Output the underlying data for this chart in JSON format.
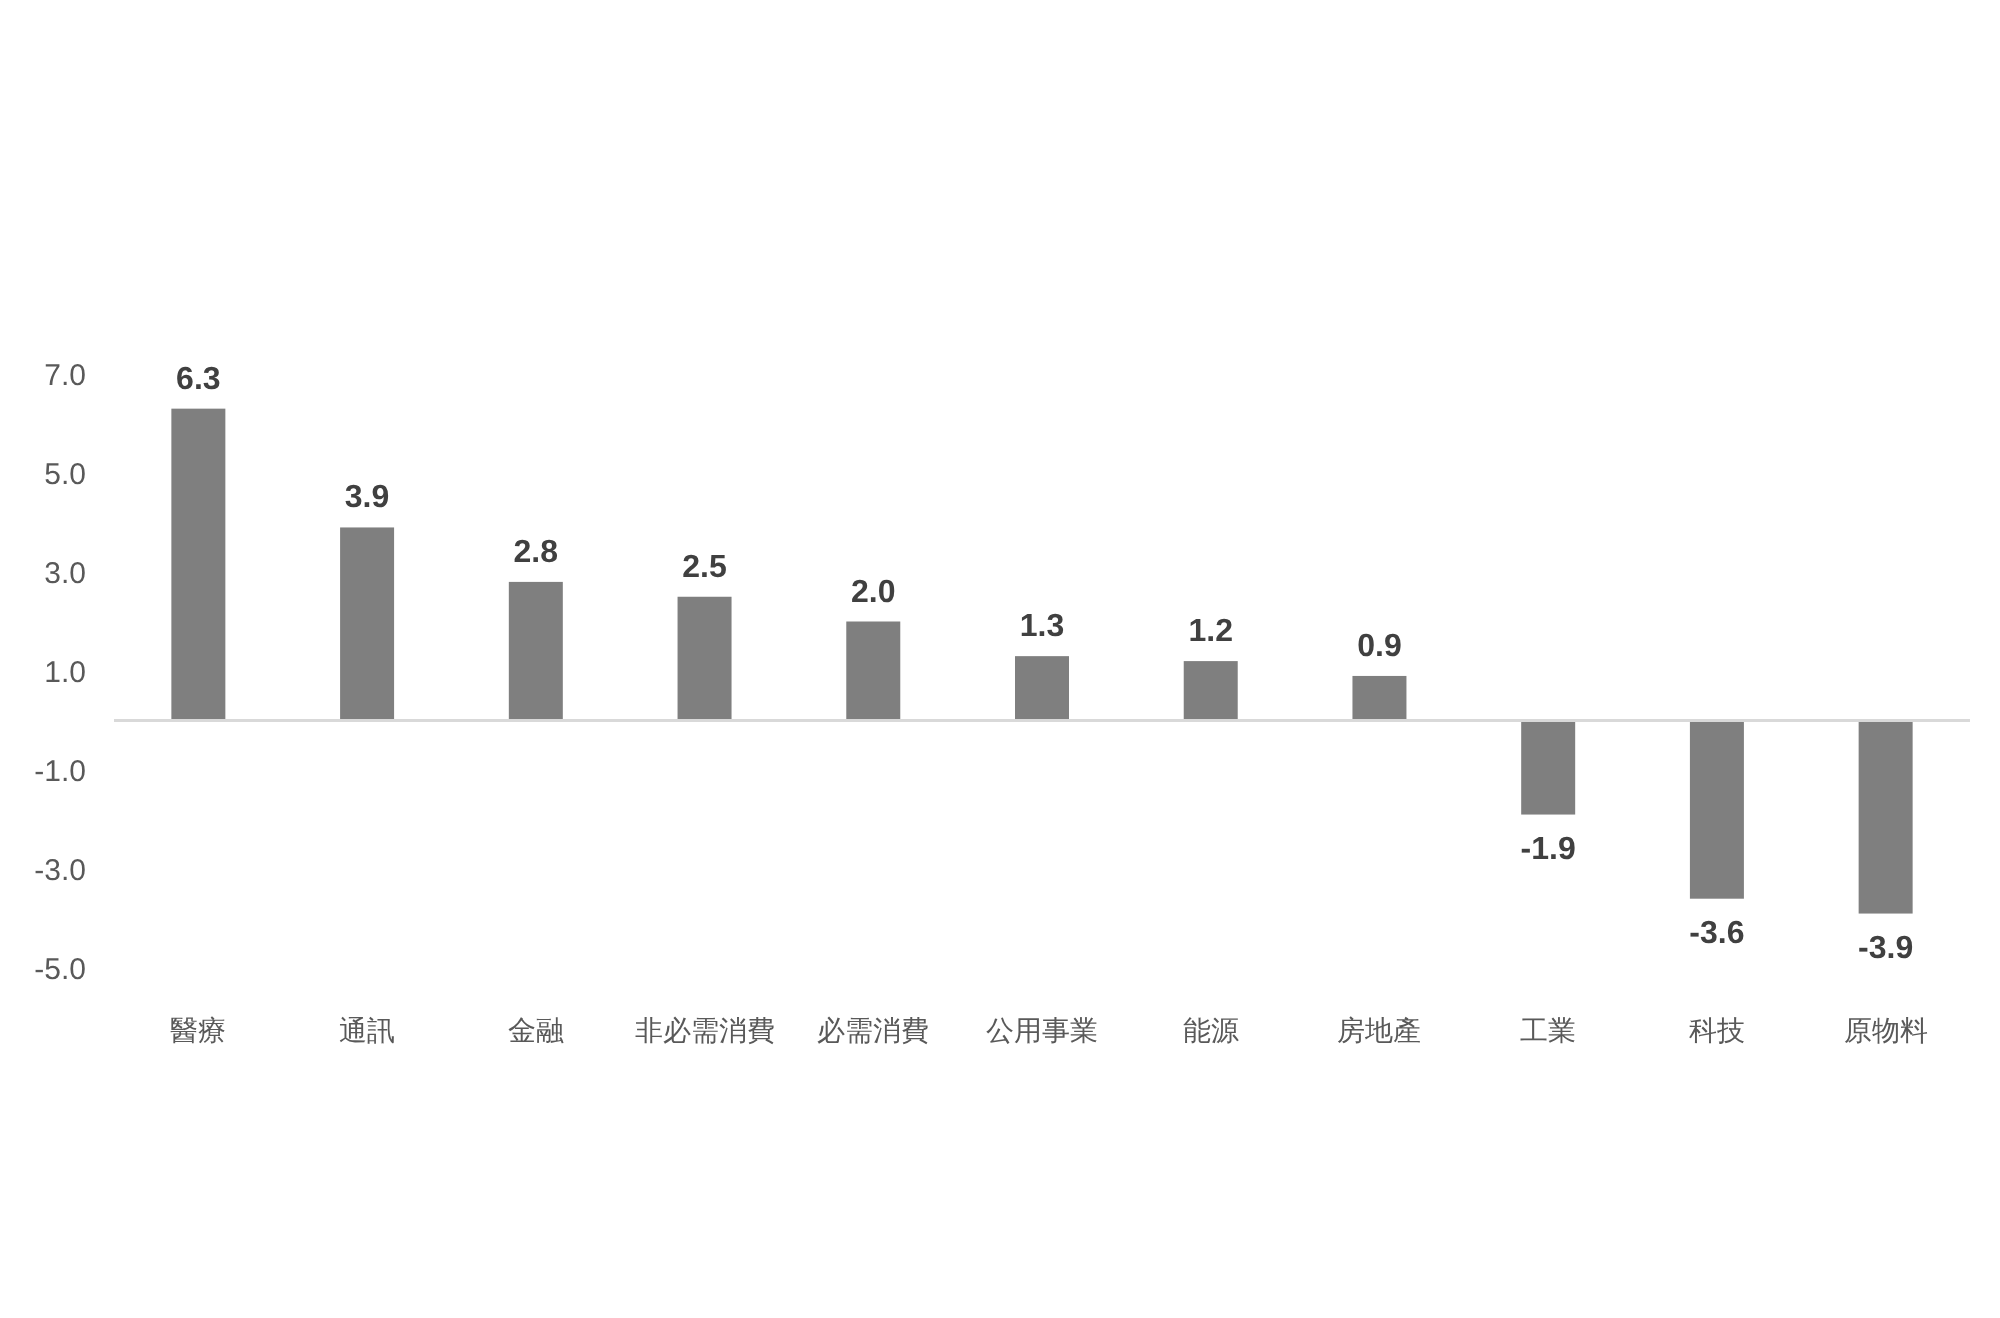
{
  "chart_data": {
    "type": "bar",
    "categories": [
      "醫療",
      "通訊",
      "金融",
      "非必需消費",
      "必需消費",
      "公用事業",
      "能源",
      "房地產",
      "工業",
      "科技",
      "原物料"
    ],
    "values": [
      6.3,
      3.9,
      2.8,
      2.5,
      2.0,
      1.3,
      1.2,
      0.9,
      -1.9,
      -3.6,
      -3.9
    ],
    "value_labels": [
      "6.3",
      "3.9",
      "2.8",
      "2.5",
      "2.0",
      "1.3",
      "1.2",
      "0.9",
      "-1.9",
      "-3.6",
      "-3.9"
    ],
    "color": "#7f7f7f",
    "ylim": [
      -5,
      7
    ],
    "yticks": [
      {
        "value": 7,
        "label": "7.0"
      },
      {
        "value": 5,
        "label": "5.0"
      },
      {
        "value": 3,
        "label": "3.0"
      },
      {
        "value": 1,
        "label": "1.0"
      },
      {
        "value": -1,
        "label": "-1.0"
      },
      {
        "value": -3,
        "label": "-3.0"
      },
      {
        "value": -5,
        "label": "-5.0"
      }
    ],
    "grid": false
  }
}
